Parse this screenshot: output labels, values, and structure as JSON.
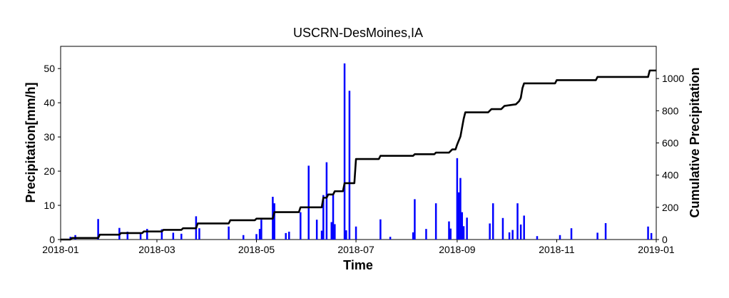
{
  "chart_data": {
    "type": "bar",
    "title": "USCRN-DesMoines,IA",
    "xlabel": "Time",
    "ylabel": "Precipitation[mm/h]",
    "y2label": "Cumulative Precipitation",
    "xlim": [
      "2018-01-01",
      "2019-01-01"
    ],
    "ylim": [
      0,
      56.5
    ],
    "y2lim": [
      0,
      1200
    ],
    "x_ticks": [
      "2018-01",
      "2018-03",
      "2018-05",
      "2018-07",
      "2018-09",
      "2018-11",
      "2019-01"
    ],
    "y_ticks": [
      0,
      10,
      20,
      30,
      40,
      50
    ],
    "y2_ticks": [
      0,
      200,
      400,
      600,
      800,
      1000
    ],
    "grid": false,
    "legend": "none",
    "colors": {
      "precipitation": "#0000ff",
      "cumulative": "#000000"
    },
    "series": [
      {
        "type": "bar",
        "axis": "left",
        "x": [
          "2018-01-07",
          "2018-01-10",
          "2018-01-24",
          "2018-02-06",
          "2018-02-11",
          "2018-02-19",
          "2018-02-23",
          "2018-03-04",
          "2018-03-11",
          "2018-03-16",
          "2018-03-25",
          "2018-03-27",
          "2018-04-14",
          "2018-04-23",
          "2018-05-01",
          "2018-05-03",
          "2018-05-04",
          "2018-05-11",
          "2018-05-12",
          "2018-05-19",
          "2018-05-21",
          "2018-05-28",
          "2018-06-02",
          "2018-06-07",
          "2018-06-10",
          "2018-06-11",
          "2018-06-13",
          "2018-06-16",
          "2018-06-17",
          "2018-06-18",
          "2018-06-24",
          "2018-06-25",
          "2018-06-27",
          "2018-07-01",
          "2018-07-16",
          "2018-07-22",
          "2018-08-05",
          "2018-08-06",
          "2018-08-13",
          "2018-08-19",
          "2018-08-27",
          "2018-08-28",
          "2018-09-01",
          "2018-09-02",
          "2018-09-03",
          "2018-09-04",
          "2018-09-05",
          "2018-09-07",
          "2018-09-21",
          "2018-09-23",
          "2018-09-29",
          "2018-10-03",
          "2018-10-05",
          "2018-10-08",
          "2018-10-10",
          "2018-10-12",
          "2018-10-20",
          "2018-11-03",
          "2018-11-10",
          "2018-11-26",
          "2018-12-01",
          "2018-12-27",
          "2018-12-29"
        ],
        "values": [
          0.8,
          1.3,
          6.0,
          3.4,
          2.3,
          1.8,
          3.1,
          3.0,
          2.0,
          1.7,
          6.8,
          3.3,
          3.8,
          1.3,
          1.6,
          3.1,
          5.8,
          12.5,
          10.6,
          1.9,
          2.3,
          8.0,
          21.6,
          5.8,
          2.6,
          13.0,
          22.6,
          5.1,
          13.4,
          4.5,
          51.5,
          2.7,
          43.5,
          3.8,
          5.9,
          0.8,
          2.1,
          11.8,
          3.1,
          10.6,
          5.3,
          3.2,
          23.8,
          13.8,
          18.0,
          8.0,
          3.9,
          6.4,
          4.7,
          10.6,
          6.3,
          2.1,
          2.8,
          10.6,
          4.4,
          7.0,
          1.0,
          1.3,
          3.3,
          2.0,
          4.8,
          3.8,
          1.9
        ]
      },
      {
        "type": "line",
        "axis": "right",
        "x": [
          "2018-01-01",
          "2018-01-07",
          "2018-01-08",
          "2018-01-24",
          "2018-01-25",
          "2018-02-06",
          "2018-02-07",
          "2018-02-20",
          "2018-02-21",
          "2018-03-04",
          "2018-03-05",
          "2018-03-16",
          "2018-03-17",
          "2018-03-25",
          "2018-03-26",
          "2018-04-14",
          "2018-04-15",
          "2018-04-30",
          "2018-05-01",
          "2018-05-11",
          "2018-05-12",
          "2018-05-27",
          "2018-05-28",
          "2018-06-10",
          "2018-06-11",
          "2018-06-13",
          "2018-06-14",
          "2018-06-17",
          "2018-06-18",
          "2018-06-23",
          "2018-06-24",
          "2018-06-30",
          "2018-07-01",
          "2018-07-15",
          "2018-07-16",
          "2018-08-05",
          "2018-08-06",
          "2018-08-18",
          "2018-08-19",
          "2018-08-27",
          "2018-08-29",
          "2018-08-31",
          "2018-09-01",
          "2018-09-03",
          "2018-09-05",
          "2018-09-06",
          "2018-09-20",
          "2018-09-22",
          "2018-09-28",
          "2018-09-30",
          "2018-10-07",
          "2018-10-09",
          "2018-10-10",
          "2018-10-11",
          "2018-10-12",
          "2018-10-31",
          "2018-11-01",
          "2018-11-25",
          "2018-11-26",
          "2018-12-27",
          "2018-12-28",
          "2019-01-01"
        ],
        "values": [
          0,
          0,
          10,
          10,
          30,
          30,
          40,
          40,
          50,
          50,
          60,
          60,
          70,
          70,
          100,
          100,
          120,
          120,
          130,
          130,
          170,
          170,
          200,
          200,
          260,
          260,
          280,
          280,
          300,
          300,
          350,
          350,
          500,
          500,
          520,
          520,
          530,
          530,
          540,
          540,
          560,
          560,
          590,
          640,
          750,
          790,
          790,
          810,
          810,
          830,
          840,
          860,
          880,
          940,
          970,
          970,
          990,
          990,
          1010,
          1010,
          1050,
          1050
        ]
      }
    ]
  }
}
